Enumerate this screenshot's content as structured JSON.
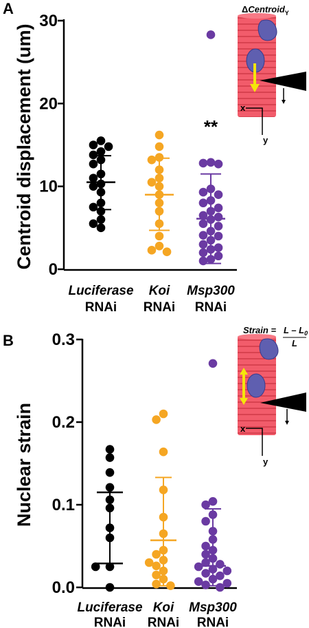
{
  "panels": {
    "a_letter": "A",
    "b_letter": "B"
  },
  "colors": {
    "luciferase": "#000000",
    "koi": "#F5A623",
    "msp300": "#6A3AA2",
    "muscle": "#F25C6B",
    "nucleus": "#5F5FB0",
    "arrow": "#F5E50A"
  },
  "chart_data": [
    {
      "type": "scatter",
      "panel": "A",
      "title": "",
      "xlabel": "",
      "ylabel": "Centroid displacement (um)",
      "ylim": [
        0,
        30
      ],
      "yticks": [
        "0",
        "10",
        "20",
        "30"
      ],
      "categories": [
        "Luciferase",
        "Koi",
        "Msp300"
      ],
      "category_sublabel": "RNAi",
      "annotation": "**",
      "series": [
        {
          "category": "Luciferase",
          "mean": 10.5,
          "sd_low": 7.2,
          "sd_high": 13.7,
          "points": [
            15.5,
            15.0,
            14.8,
            14.2,
            13.8,
            13.2,
            12.7,
            11.5,
            11.0,
            10.3,
            10.0,
            9.3,
            8.0,
            7.5,
            7.0,
            6.0,
            5.5,
            5.0
          ]
        },
        {
          "category": "Koi",
          "mean": 9.0,
          "sd_low": 4.7,
          "sd_high": 13.4,
          "points": [
            16.2,
            14.8,
            13.5,
            13.2,
            12.0,
            11.0,
            10.5,
            10.0,
            9.0,
            8.0,
            7.0,
            5.5,
            4.0,
            2.8,
            2.3,
            2.1
          ]
        },
        {
          "category": "Msp300",
          "mean": 6.1,
          "sd_low": 0.7,
          "sd_high": 11.5,
          "points": [
            28.3,
            12.9,
            12.8,
            12.7,
            9.7,
            9.3,
            9.0,
            8.3,
            8.0,
            7.4,
            7.0,
            6.5,
            6.3,
            6.0,
            5.5,
            5.2,
            4.6,
            4.1,
            4.0,
            3.5,
            3.0,
            2.6,
            2.4,
            2.0,
            1.6,
            1.2,
            1.0
          ]
        }
      ],
      "inset": {
        "label_prefix": "Δ",
        "label": "Centroid",
        "label_sub": "Y",
        "x_axis": "x",
        "y_axis": "y"
      }
    },
    {
      "type": "scatter",
      "panel": "B",
      "title": "",
      "xlabel": "",
      "ylabel": "Nuclear strain",
      "ylim": [
        0,
        0.3
      ],
      "yticks": [
        "0.0",
        "0.1",
        "0.2",
        "0.3"
      ],
      "categories": [
        "Luciferase",
        "Koi",
        "Msp300"
      ],
      "category_sublabel": "RNAi",
      "series": [
        {
          "category": "Luciferase",
          "mean": 0.115,
          "sd_low": 0.029,
          "sd_high": 0.115,
          "median": 0.029,
          "points": [
            0.167,
            0.157,
            0.139,
            0.121,
            0.106,
            0.096,
            0.072,
            0.06,
            0.025,
            0.025,
            0.0
          ]
        },
        {
          "category": "Koi",
          "mean": 0.057,
          "sd_low": 0.002,
          "sd_high": 0.133,
          "points": [
            0.21,
            0.203,
            0.164,
            0.118,
            0.085,
            0.065,
            0.045,
            0.04,
            0.033,
            0.03,
            0.026,
            0.02,
            0.015,
            0.01,
            0.004,
            0.002
          ]
        },
        {
          "category": "Msp300",
          "mean": 0.026,
          "sd_low": 0.002,
          "sd_high": 0.095,
          "points": [
            0.271,
            0.104,
            0.1,
            0.088,
            0.08,
            0.068,
            0.058,
            0.05,
            0.045,
            0.04,
            0.035,
            0.03,
            0.028,
            0.025,
            0.022,
            0.02,
            0.017,
            0.014,
            0.01,
            0.007,
            0.005,
            0.003,
            0.0
          ]
        }
      ],
      "inset": {
        "formula_prefix": "Strain = ",
        "formula_numerator": "L – L",
        "formula_numerator_sub": "0",
        "formula_denominator": "L",
        "x_axis": "x",
        "y_axis": "y"
      }
    }
  ]
}
